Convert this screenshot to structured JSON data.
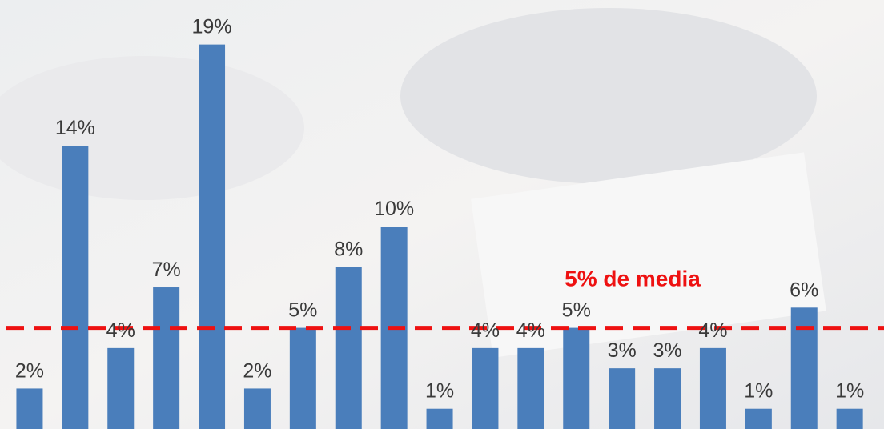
{
  "chart_data": {
    "type": "bar",
    "categories": [
      null,
      null,
      null,
      null,
      null,
      null,
      null,
      null,
      null,
      null,
      null,
      null,
      null,
      null,
      null,
      null,
      null,
      null,
      null
    ],
    "values": [
      2,
      14,
      4,
      7,
      19,
      2,
      5,
      8,
      10,
      1,
      4,
      4,
      5,
      3,
      3,
      4,
      1,
      6,
      1
    ],
    "value_labels": [
      "2%",
      "14%",
      "4%",
      "7%",
      "19%",
      "2%",
      "5%",
      "8%",
      "10%",
      "1%",
      "4%",
      "4%",
      "5%",
      "3%",
      "3%",
      "4%",
      "1%",
      "6%",
      "1%"
    ],
    "color": "#4a7ebb",
    "ylim": [
      0,
      21.2
    ],
    "mean_line": {
      "value": 5,
      "label": "5% de media",
      "color": "#ee1111"
    }
  }
}
